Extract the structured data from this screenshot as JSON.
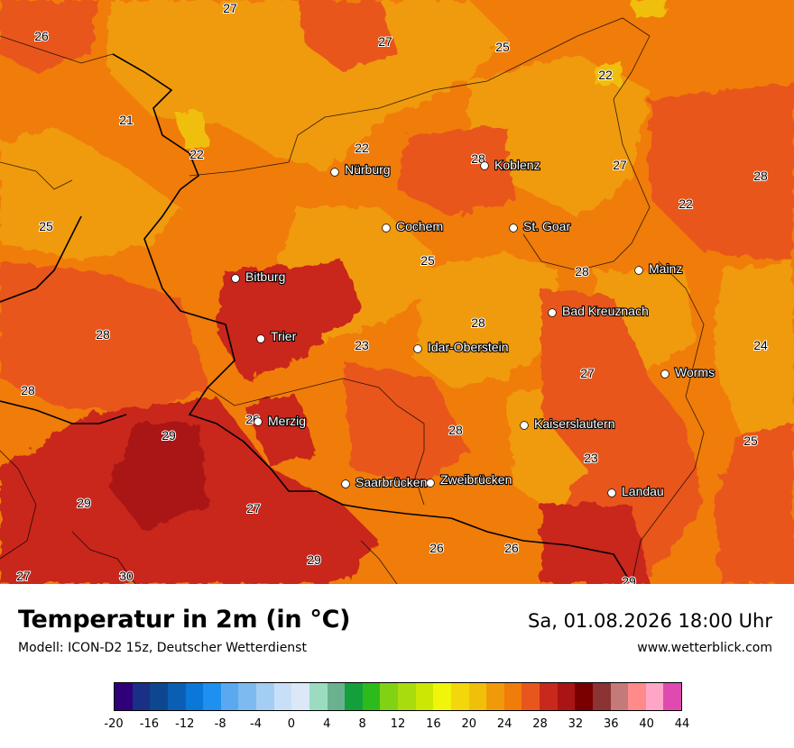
{
  "title": "Temperatur in 2m (in °C)",
  "model": "Modell: ICON-D2 15z, Deutscher Wetterdienst",
  "datetime": "Sa, 01.08.2026 18:00 Uhr",
  "website": "www.wetterblick.com",
  "legend": {
    "ticks": [
      "-20",
      "-16",
      "-12",
      "-8",
      "-4",
      "0",
      "4",
      "8",
      "12",
      "16",
      "20",
      "24",
      "28",
      "32",
      "36",
      "40",
      "44"
    ],
    "colors": [
      "#30007a",
      "#1a2f86",
      "#0d4790",
      "#0a5fb5",
      "#0a78d8",
      "#1e90f0",
      "#5aa9f0",
      "#7dbaf0",
      "#a3cdf3",
      "#c8e0f7",
      "#dbe8f8",
      "#9bdcc0",
      "#6ab28f",
      "#13a03c",
      "#2dbb1c",
      "#82d214",
      "#a9dc0e",
      "#cbe804",
      "#f0f50a",
      "#f3d70a",
      "#f0bf0a",
      "#f09a0a",
      "#f07c0a",
      "#e8561e",
      "#c9281c",
      "#aa1414",
      "#7a0000",
      "#8c3333",
      "#c57a7a",
      "#ff8a8a",
      "#ffa6c8",
      "#e04ab0"
    ]
  },
  "cities": [
    {
      "name": "Nürburg"
    },
    {
      "name": "Koblenz"
    },
    {
      "name": "Cochem"
    },
    {
      "name": "St. Goar"
    },
    {
      "name": "Bitburg"
    },
    {
      "name": "Mainz"
    },
    {
      "name": "Bad Kreuznach"
    },
    {
      "name": "Trier"
    },
    {
      "name": "Idar-Oberstein"
    },
    {
      "name": "Worms"
    },
    {
      "name": "Merzig"
    },
    {
      "name": "Kaiserslautern"
    },
    {
      "name": "Saarbrücken"
    },
    {
      "name": "Zweibrücken"
    },
    {
      "name": "Landau"
    }
  ],
  "values": [
    "27",
    "26",
    "27",
    "25",
    "22",
    "21",
    "22",
    "22",
    "28",
    "27",
    "28",
    "25",
    "22",
    "25",
    "28",
    "28",
    "24",
    "28",
    "23",
    "27",
    "28",
    "29",
    "28",
    "25",
    "23",
    "29",
    "27",
    "26",
    "26",
    "29",
    "27",
    "30",
    "29",
    "26"
  ]
}
